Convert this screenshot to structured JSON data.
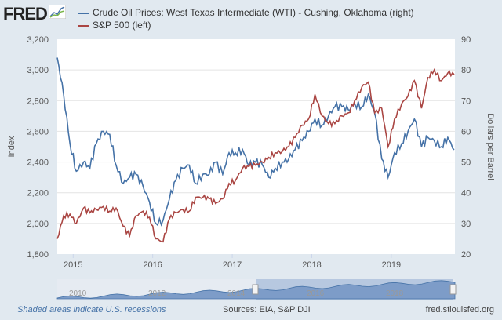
{
  "brand": "FRED",
  "footer": {
    "recessions": "Shaded areas indicate U.S. recessions",
    "sources": "Sources: EIA, S&P DJI",
    "site": "fred.stlouisfed.org"
  },
  "colors": {
    "wti": "#4572a7",
    "sp500": "#aa4643"
  },
  "chart_data": {
    "type": "line",
    "title": "",
    "xlabel": "",
    "ylabel_left": "Index",
    "ylabel_right": "Dollars per Barrel",
    "ylim_left": [
      1800,
      3200
    ],
    "ylim_right": [
      20,
      90
    ],
    "yticks_left": [
      "1,800",
      "2,000",
      "2,200",
      "2,400",
      "2,600",
      "2,800",
      "3,000",
      "3,200"
    ],
    "yticks_right": [
      "20",
      "30",
      "40",
      "50",
      "60",
      "70",
      "80",
      "90"
    ],
    "xticks": [
      "2015",
      "2016",
      "2017",
      "2018",
      "2019"
    ],
    "xrange": [
      2014.8,
      2019.8
    ],
    "legend_placement": "top-left",
    "grid": true,
    "x": [
      2014.8,
      2014.88,
      2014.96,
      2015.04,
      2015.13,
      2015.21,
      2015.29,
      2015.38,
      2015.46,
      2015.54,
      2015.63,
      2015.71,
      2015.79,
      2015.88,
      2015.96,
      2016.04,
      2016.13,
      2016.21,
      2016.29,
      2016.38,
      2016.46,
      2016.54,
      2016.63,
      2016.71,
      2016.79,
      2016.88,
      2016.96,
      2017.04,
      2017.13,
      2017.21,
      2017.29,
      2017.38,
      2017.46,
      2017.54,
      2017.63,
      2017.71,
      2017.79,
      2017.88,
      2017.96,
      2018.04,
      2018.13,
      2018.21,
      2018.29,
      2018.38,
      2018.46,
      2018.54,
      2018.63,
      2018.71,
      2018.79,
      2018.88,
      2018.96,
      2019.04,
      2019.13,
      2019.21,
      2019.29,
      2019.38,
      2019.46,
      2019.54,
      2019.63,
      2019.71,
      2019.79
    ],
    "series": [
      {
        "name": "Crude Oil Prices: West Texas Intermediate (WTI) - Cushing, Oklahoma (right)",
        "axis": "right",
        "values": [
          84,
          72,
          56,
          47,
          50,
          48,
          56,
          60,
          59,
          49,
          43,
          45,
          46,
          42,
          37,
          30,
          31,
          38,
          44,
          48,
          49,
          43,
          46,
          46,
          50,
          46,
          53,
          53,
          54,
          49,
          50,
          49,
          45,
          48,
          50,
          51,
          54,
          57,
          60,
          64,
          62,
          65,
          68,
          68,
          67,
          69,
          68,
          72,
          66,
          51,
          45,
          53,
          56,
          60,
          64,
          55,
          58,
          57,
          55,
          58,
          54
        ]
      },
      {
        "name": "S&P 500 (left)",
        "axis": "left",
        "values": [
          1900,
          2050,
          2060,
          2000,
          2100,
          2070,
          2090,
          2110,
          2080,
          2100,
          1980,
          1920,
          2050,
          2080,
          2040,
          1900,
          1880,
          2030,
          2070,
          2090,
          2080,
          2170,
          2170,
          2160,
          2130,
          2160,
          2260,
          2280,
          2360,
          2370,
          2380,
          2400,
          2430,
          2460,
          2470,
          2500,
          2560,
          2640,
          2680,
          2840,
          2700,
          2650,
          2650,
          2700,
          2720,
          2800,
          2890,
          2920,
          2720,
          2750,
          2500,
          2680,
          2780,
          2830,
          2930,
          2750,
          2950,
          3000,
          2930,
          2980,
          2970
        ]
      }
    ],
    "navigator": {
      "labels": [
        "2010",
        "2012",
        "2014",
        "2016",
        "2018"
      ]
    }
  }
}
